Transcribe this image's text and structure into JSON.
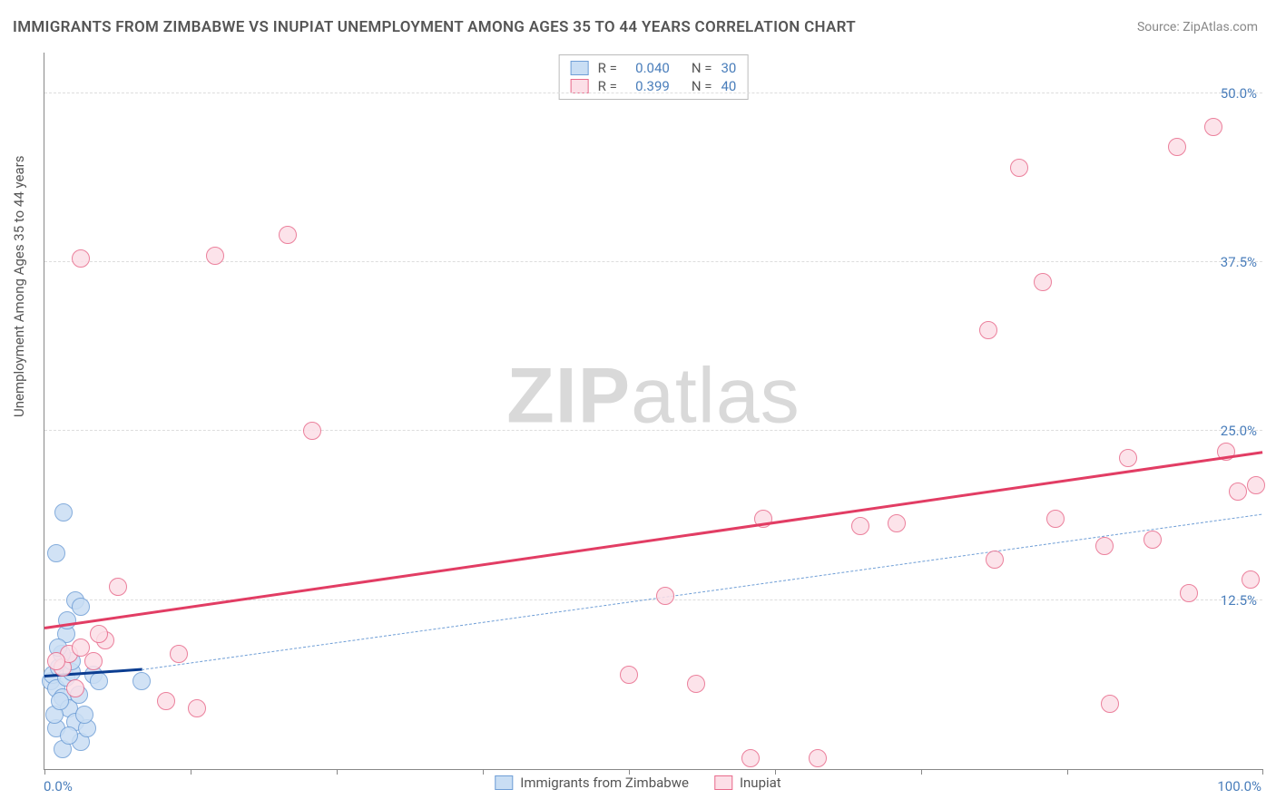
{
  "title": "IMMIGRANTS FROM ZIMBABWE VS INUPIAT UNEMPLOYMENT AMONG AGES 35 TO 44 YEARS CORRELATION CHART",
  "source": "Source: ZipAtlas.com",
  "ylabel": "Unemployment Among Ages 35 to 44 years",
  "watermark_a": "ZIP",
  "watermark_b": "atlas",
  "chart": {
    "type": "scatter",
    "xlim": [
      0,
      100
    ],
    "ylim": [
      0,
      53
    ],
    "xticks": [
      0,
      12,
      24,
      36,
      48,
      60,
      72,
      84,
      100
    ],
    "xtick_labels": {
      "0": "0.0%",
      "100": "100.0%"
    },
    "yticks": [
      12.5,
      25.0,
      37.5,
      50.0
    ],
    "ytick_labels": [
      "12.5%",
      "25.0%",
      "37.5%",
      "50.0%"
    ],
    "background_color": "#ffffff",
    "grid_color": "#dddddd",
    "axis_color": "#888888",
    "marker_radius": 9,
    "marker_stroke": 1.5,
    "series": [
      {
        "key": "zimbabwe",
        "label": "Immigrants from Zimbabwe",
        "fill": "#c9def4",
        "stroke": "#6f9ed6",
        "R": "0.040",
        "N": "30",
        "trend": {
          "x1": 0,
          "y1": 6.8,
          "x2": 8,
          "y2": 7.3,
          "width": 3,
          "dash": false,
          "color": "#0b3d91"
        },
        "trend_ext": {
          "x1": 8,
          "y1": 7.3,
          "x2": 100,
          "y2": 18.8,
          "width": 1.5,
          "dash": true,
          "color": "#6f9ed6"
        },
        "points": [
          [
            0.5,
            6.5
          ],
          [
            0.7,
            7.0
          ],
          [
            1.0,
            6.0
          ],
          [
            1.2,
            7.5
          ],
          [
            1.5,
            5.3
          ],
          [
            1.8,
            6.8
          ],
          [
            2.0,
            4.5
          ],
          [
            2.2,
            7.2
          ],
          [
            1.0,
            3.0
          ],
          [
            2.5,
            3.5
          ],
          [
            3.0,
            2.0
          ],
          [
            3.5,
            3.0
          ],
          [
            1.5,
            1.5
          ],
          [
            2.0,
            2.5
          ],
          [
            0.8,
            4.0
          ],
          [
            1.3,
            5.0
          ],
          [
            1.6,
            19.0
          ],
          [
            1.0,
            16.0
          ],
          [
            2.5,
            12.5
          ],
          [
            3.0,
            12.0
          ],
          [
            1.8,
            10.0
          ],
          [
            2.2,
            8.0
          ],
          [
            4.0,
            7.0
          ],
          [
            4.5,
            6.5
          ],
          [
            8.0,
            6.5
          ],
          [
            1.4,
            8.5
          ],
          [
            1.1,
            9.0
          ],
          [
            2.8,
            5.5
          ],
          [
            3.3,
            4.0
          ],
          [
            1.9,
            11.0
          ]
        ]
      },
      {
        "key": "inupiat",
        "label": "Inupiat",
        "fill": "#fcdfe7",
        "stroke": "#e86a8b",
        "R": "0.399",
        "N": "40",
        "trend": {
          "x1": 0,
          "y1": 10.3,
          "x2": 100,
          "y2": 23.3,
          "width": 3,
          "dash": false,
          "color": "#e23d64"
        },
        "points": [
          [
            1.5,
            7.5
          ],
          [
            2.0,
            8.5
          ],
          [
            3.0,
            9.0
          ],
          [
            4.0,
            8.0
          ],
          [
            5.0,
            9.5
          ],
          [
            6.0,
            13.5
          ],
          [
            10.0,
            5.0
          ],
          [
            11.0,
            8.5
          ],
          [
            12.5,
            4.5
          ],
          [
            3.0,
            37.8
          ],
          [
            14.0,
            38.0
          ],
          [
            20.0,
            39.5
          ],
          [
            22.0,
            25.0
          ],
          [
            48.0,
            7.0
          ],
          [
            51.0,
            12.8
          ],
          [
            53.5,
            6.3
          ],
          [
            58.0,
            0.8
          ],
          [
            63.5,
            0.8
          ],
          [
            67.0,
            18.0
          ],
          [
            70.0,
            18.2
          ],
          [
            77.5,
            32.5
          ],
          [
            78.0,
            15.5
          ],
          [
            80.0,
            44.5
          ],
          [
            82.0,
            36.0
          ],
          [
            83.0,
            18.5
          ],
          [
            87.0,
            16.5
          ],
          [
            87.5,
            4.8
          ],
          [
            89.0,
            23.0
          ],
          [
            91.0,
            17.0
          ],
          [
            93.0,
            46.0
          ],
          [
            94.0,
            13.0
          ],
          [
            96.0,
            47.5
          ],
          [
            97.0,
            23.5
          ],
          [
            98.0,
            20.5
          ],
          [
            99.0,
            14.0
          ],
          [
            99.5,
            21.0
          ],
          [
            59.0,
            18.5
          ],
          [
            2.5,
            6.0
          ],
          [
            4.5,
            10.0
          ],
          [
            1.0,
            8.0
          ]
        ]
      }
    ]
  },
  "legend_top": {
    "r_label": "R =",
    "n_label": "N ="
  }
}
